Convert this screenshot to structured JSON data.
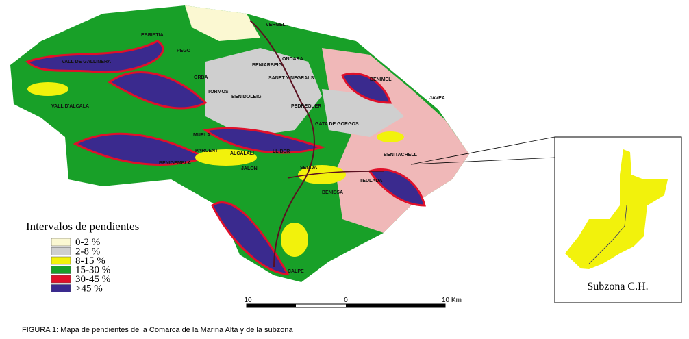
{
  "legend": {
    "title": "Intervalos de pendientes",
    "items": [
      {
        "label": "0-2 %",
        "color": "#fbf8d2"
      },
      {
        "label": "2-8 %",
        "color": "#cfcfcf"
      },
      {
        "label": "8-15 %",
        "color": "#f2f20c"
      },
      {
        "label": "15-30 %",
        "color": "#18a028"
      },
      {
        "label": "30-45 %",
        "color": "#e0102a"
      },
      {
        "label": ">45 %",
        "color": "#3a2a8e"
      }
    ]
  },
  "places": [
    "VERGEL",
    "ONDARA",
    "PEGO",
    "BENIARBEIG",
    "SANET Y NEGRALS",
    "TORMOS",
    "BENIDOLEIG",
    "PEDREGUER",
    "JAVEA",
    "GATA DE GORGOS",
    "LLIBER",
    "JALON",
    "SENIJA",
    "BENITACHELL",
    "TEULADA",
    "BENISSA",
    "CALPE",
    "PARCENT",
    "ALCALALI",
    "BENIGEMBLA",
    "VALL DE GALLINERA",
    "VALL D'ALCALA",
    "ORBA",
    "MURLA",
    "EBRISTIA",
    "BENIMELI"
  ],
  "scale": {
    "labels": [
      "10",
      "0",
      "10 Km"
    ]
  },
  "inset": {
    "label": "Subzona C.H."
  },
  "caption": "FIGURA 1: Mapa de pendientes de la Comarca de la Marina Alta y de la subzona"
}
